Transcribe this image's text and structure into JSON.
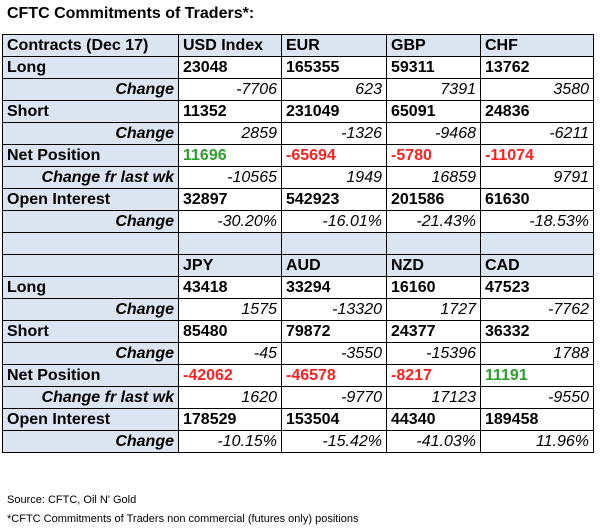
{
  "title": "CFTC Commitments of Traders*:",
  "header": {
    "label": "Contracts (Dec 17)",
    "currencies": [
      "USD Index",
      "EUR",
      "GBP",
      "CHF"
    ]
  },
  "block1": {
    "long": {
      "label": "Long",
      "values": [
        "23048",
        "165355",
        "59311",
        "13762"
      ]
    },
    "long_change": {
      "label": "Change",
      "values": [
        "-7706",
        "623",
        "7391",
        "3580"
      ]
    },
    "short": {
      "label": "Short",
      "values": [
        "11352",
        "231049",
        "65091",
        "24836"
      ]
    },
    "short_change": {
      "label": "Change",
      "values": [
        "2859",
        "-1326",
        "-9468",
        "-6211"
      ]
    },
    "net": {
      "label": "Net Position",
      "values": [
        "11696",
        "-65694",
        "-5780",
        "-11074"
      ]
    },
    "net_change": {
      "label": "Change fr last wk",
      "values": [
        "-10565",
        "1949",
        "16859",
        "9791"
      ]
    },
    "oi": {
      "label": "Open Interest",
      "values": [
        "32897",
        "542923",
        "201586",
        "61630"
      ]
    },
    "oi_change": {
      "label": "Change",
      "values": [
        "-30.20%",
        "-16.01%",
        "-21.43%",
        "-18.53%"
      ]
    }
  },
  "block2": {
    "currencies": [
      "JPY",
      "AUD",
      "NZD",
      "CAD"
    ],
    "long": {
      "label": "Long",
      "values": [
        "43418",
        "33294",
        "16160",
        "47523"
      ]
    },
    "long_change": {
      "label": "Change",
      "values": [
        "1575",
        "-13320",
        "1727",
        "-7762"
      ]
    },
    "short": {
      "label": "Short",
      "values": [
        "85480",
        "79872",
        "24377",
        "36332"
      ]
    },
    "short_change": {
      "label": "Change",
      "values": [
        "-45",
        "-3550",
        "-15396",
        "1788"
      ]
    },
    "net": {
      "label": "Net Position",
      "values": [
        "-42062",
        "-46578",
        "-8217",
        "11191"
      ]
    },
    "net_change": {
      "label": "Change fr last wk",
      "values": [
        "1620",
        "-9770",
        "17123",
        "-9550"
      ]
    },
    "oi": {
      "label": "Open Interest",
      "values": [
        "178529",
        "153504",
        "44340",
        "189458"
      ]
    },
    "oi_change": {
      "label": "Change",
      "values": [
        "-10.15%",
        "-15.42%",
        "-41.03%",
        "11.96%"
      ]
    }
  },
  "colors": {
    "positive": "#2e9e2e",
    "negative": "#ff2020",
    "shade": "#dbe5f1"
  },
  "footer": {
    "source": "Source: CFTC, Oil N' Gold",
    "note": "*CFTC Commitments of Traders non commercial (futures only) positions"
  }
}
